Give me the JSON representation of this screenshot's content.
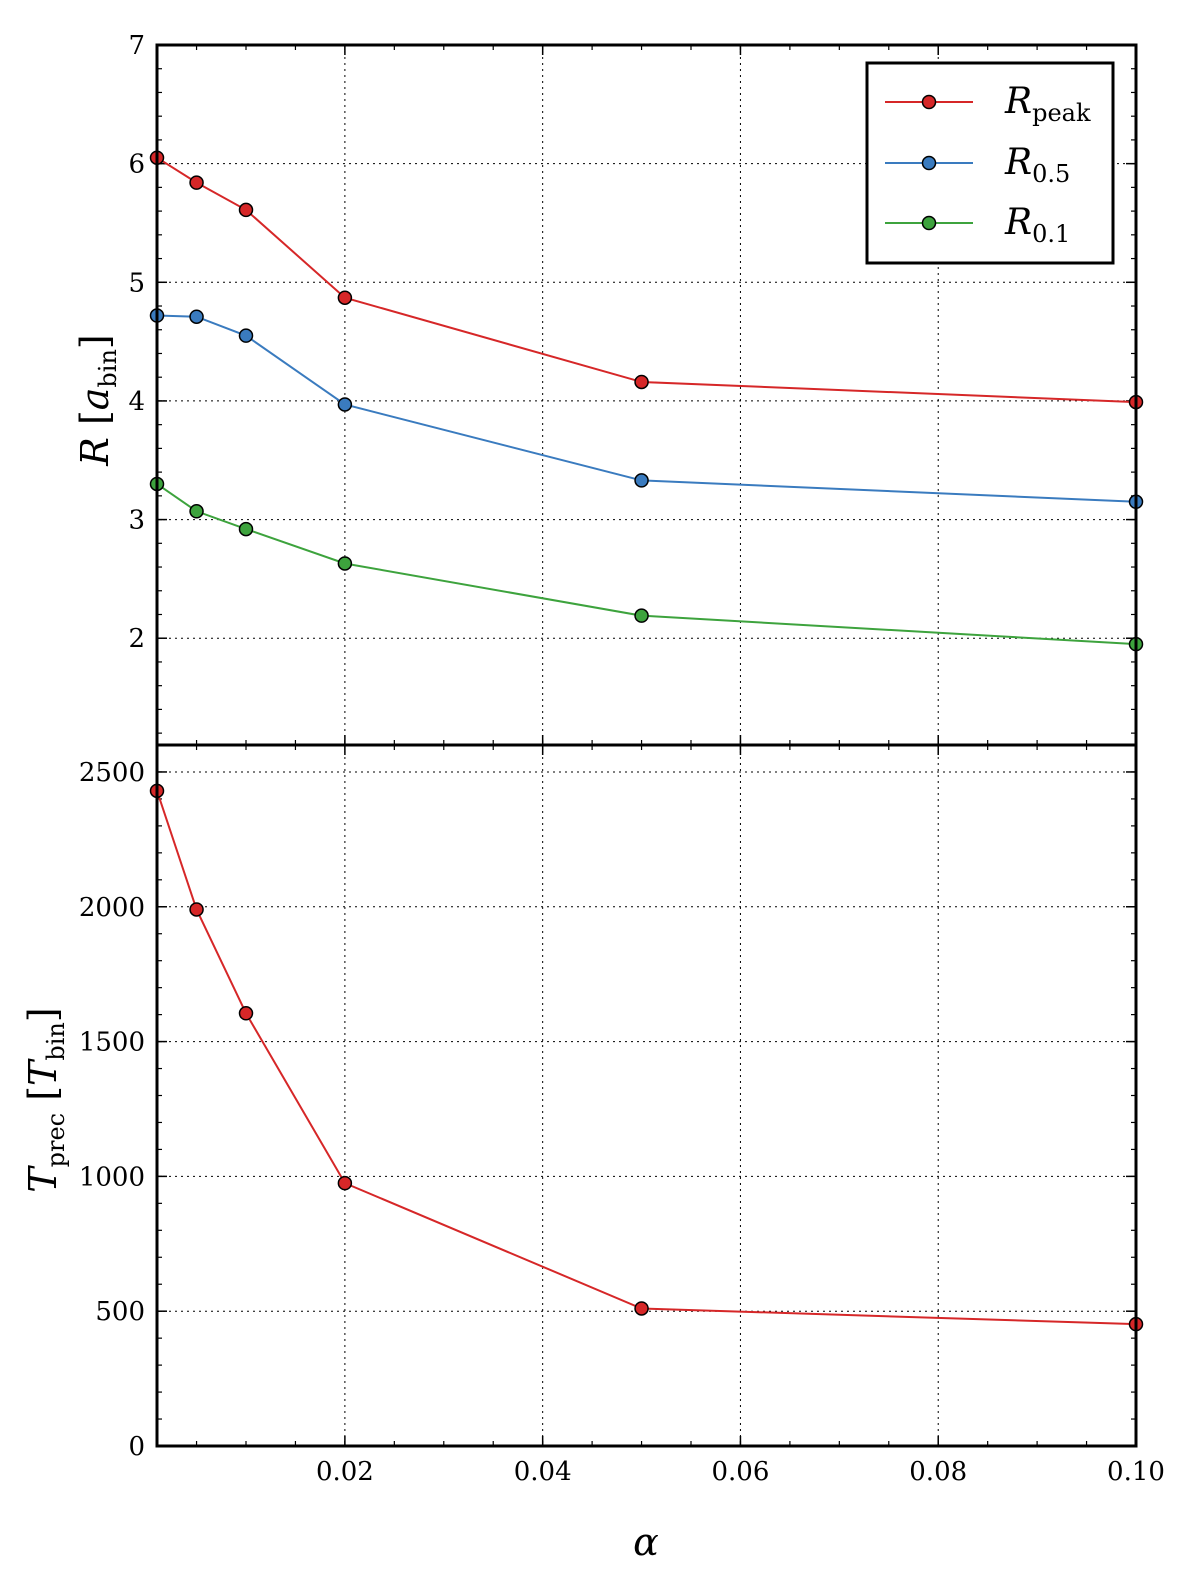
{
  "chart_data": [
    {
      "type": "line",
      "panel": "top",
      "x": [
        0.001,
        0.005,
        0.01,
        0.02,
        0.05,
        0.1
      ],
      "xlim": [
        0.001,
        0.1
      ],
      "ylim": [
        1.1,
        7
      ],
      "yticks": [
        2,
        3,
        4,
        5,
        6,
        7
      ],
      "ytick_labels": [
        "2",
        "3",
        "4",
        "5",
        "6",
        "7"
      ],
      "ylabel": {
        "main": "R",
        "bracket_main": "a",
        "bracket_sub": "bin"
      },
      "grid": true,
      "legend_position": "top-right",
      "series": [
        {
          "name": "R_peak",
          "legend_main": "R",
          "legend_sub": "peak",
          "color": "#d62728",
          "values": [
            6.05,
            5.84,
            5.61,
            4.87,
            4.16,
            3.99
          ]
        },
        {
          "name": "R_0.5",
          "legend_main": "R",
          "legend_sub": "0.5",
          "color": "#3a7bbf",
          "values": [
            4.72,
            4.71,
            4.55,
            3.97,
            3.33,
            3.15
          ]
        },
        {
          "name": "R_0.1",
          "legend_main": "R",
          "legend_sub": "0.1",
          "color": "#3da33d",
          "values": [
            3.3,
            3.07,
            2.92,
            2.63,
            2.19,
            1.95
          ]
        }
      ]
    },
    {
      "type": "line",
      "panel": "bottom",
      "x": [
        0.001,
        0.005,
        0.01,
        0.02,
        0.05,
        0.1
      ],
      "xlim": [
        0.001,
        0.1
      ],
      "ylim": [
        0,
        2600
      ],
      "yticks": [
        0,
        500,
        1000,
        1500,
        2000,
        2500
      ],
      "ytick_labels": [
        "0",
        "500",
        "1000",
        "1500",
        "2000",
        "2500"
      ],
      "xticks": [
        0.02,
        0.04,
        0.06,
        0.08,
        0.1
      ],
      "xtick_labels": [
        "0.02",
        "0.04",
        "0.06",
        "0.08",
        "0.10"
      ],
      "xlabel": "α",
      "ylabel": {
        "main": "T",
        "main_sub": "prec",
        "bracket_main": "T",
        "bracket_sub": "bin"
      },
      "grid": true,
      "series": [
        {
          "name": "T_prec",
          "color": "#d62728",
          "values": [
            2430,
            1990,
            1605,
            975,
            510,
            452
          ]
        }
      ]
    }
  ]
}
